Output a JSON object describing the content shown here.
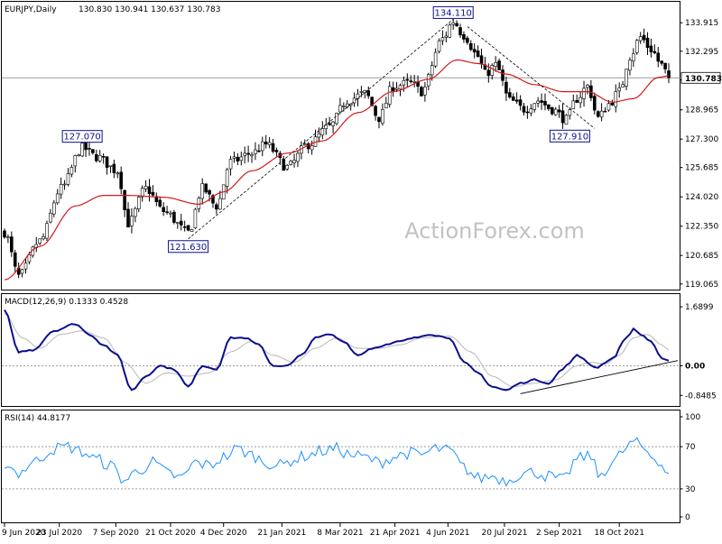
{
  "chart_data": {
    "type": "candlestick",
    "watermark": "ActionForex.com",
    "price_panel": {
      "header_symbol": "EURJPY,Daily",
      "header_ohlc": "130.830 130.941 130.637 130.783",
      "y_ticks": [
        "133.915",
        "132.295",
        "130.675",
        "128.965",
        "127.300",
        "125.685",
        "124.020",
        "122.350",
        "120.685",
        "119.065"
      ],
      "y_tick_values": [
        133.915,
        132.295,
        130.675,
        128.965,
        127.3,
        125.685,
        124.02,
        122.35,
        120.685,
        119.065
      ],
      "ylim": [
        118.9,
        134.9
      ],
      "current_price": 130.783,
      "current_price_label": "130.783",
      "callouts": [
        {
          "label": "127.070",
          "x_index": 22,
          "value": 127.07
        },
        {
          "label": "121.630",
          "x_index": 52,
          "value": 121.63
        },
        {
          "label": "134.110",
          "x_index": 127,
          "value": 134.11
        },
        {
          "label": "127.910",
          "x_index": 160,
          "value": 127.91
        }
      ],
      "trendlines": [
        {
          "from": [
            52,
            121.63
          ],
          "to": [
            127,
            134.11
          ]
        },
        {
          "from": [
            131,
            133.7
          ],
          "to": [
            167,
            127.91
          ]
        }
      ],
      "moving_average_anchors": [
        [
          0,
          119.3
        ],
        [
          10,
          121.2
        ],
        [
          20,
          123.5
        ],
        [
          28,
          124.1
        ],
        [
          35,
          124.1
        ],
        [
          45,
          124.0
        ],
        [
          55,
          123.6
        ],
        [
          62,
          124.3
        ],
        [
          70,
          125.5
        ],
        [
          80,
          126.5
        ],
        [
          90,
          127.2
        ],
        [
          100,
          128.8
        ],
        [
          110,
          130.0
        ],
        [
          120,
          130.7
        ],
        [
          128,
          131.8
        ],
        [
          134,
          131.6
        ],
        [
          142,
          131.0
        ],
        [
          150,
          130.4
        ],
        [
          158,
          130.0
        ],
        [
          165,
          130.0
        ],
        [
          172,
          129.4
        ],
        [
          178,
          129.6
        ],
        [
          185,
          130.8
        ],
        [
          188,
          130.9
        ]
      ],
      "price_anchors": [
        [
          0,
          122.0
        ],
        [
          4,
          119.5
        ],
        [
          10,
          121.5
        ],
        [
          16,
          124.5
        ],
        [
          22,
          126.8
        ],
        [
          26,
          126.3
        ],
        [
          32,
          125.5
        ],
        [
          35,
          122.5
        ],
        [
          40,
          124.5
        ],
        [
          45,
          123.2
        ],
        [
          52,
          122.0
        ],
        [
          56,
          124.5
        ],
        [
          60,
          123.5
        ],
        [
          64,
          126.0
        ],
        [
          70,
          126.5
        ],
        [
          74,
          127.0
        ],
        [
          80,
          125.7
        ],
        [
          86,
          127.0
        ],
        [
          92,
          128.0
        ],
        [
          97,
          129.5
        ],
        [
          102,
          129.9
        ],
        [
          106,
          128.5
        ],
        [
          110,
          130.3
        ],
        [
          115,
          130.5
        ],
        [
          118,
          130.0
        ],
        [
          124,
          133.0
        ],
        [
          127,
          134.0
        ],
        [
          130,
          133.2
        ],
        [
          134,
          132.0
        ],
        [
          136,
          131.0
        ],
        [
          139,
          131.5
        ],
        [
          143,
          129.5
        ],
        [
          147,
          129.0
        ],
        [
          151,
          129.5
        ],
        [
          155,
          129.0
        ],
        [
          159,
          128.4
        ],
        [
          162,
          129.6
        ],
        [
          165,
          130.3
        ],
        [
          168,
          128.5
        ],
        [
          171,
          129.3
        ],
        [
          174,
          130.0
        ],
        [
          177,
          132.0
        ],
        [
          180,
          133.1
        ],
        [
          183,
          132.4
        ],
        [
          186,
          131.5
        ],
        [
          188,
          130.78
        ]
      ]
    },
    "macd_panel": {
      "label": "MACD(12,26,9) 0.1333 0.4528",
      "y_ticks": [
        "1.6899",
        "0.00",
        "-0.8485"
      ],
      "y_tick_values": [
        1.6899,
        0.0,
        -0.8485
      ],
      "ylim": [
        -1.1,
        1.95
      ],
      "current_value_label": "0.00",
      "main_anchors": [
        [
          0,
          1.6
        ],
        [
          4,
          0.4
        ],
        [
          8,
          0.45
        ],
        [
          14,
          1.0
        ],
        [
          20,
          1.2
        ],
        [
          24,
          0.9
        ],
        [
          28,
          0.6
        ],
        [
          32,
          0.3
        ],
        [
          36,
          -0.7
        ],
        [
          40,
          -0.3
        ],
        [
          44,
          0.0
        ],
        [
          48,
          -0.1
        ],
        [
          52,
          -0.6
        ],
        [
          56,
          0.0
        ],
        [
          60,
          -0.1
        ],
        [
          64,
          0.8
        ],
        [
          68,
          0.8
        ],
        [
          72,
          0.6
        ],
        [
          76,
          0.0
        ],
        [
          80,
          0.0
        ],
        [
          84,
          0.3
        ],
        [
          88,
          0.8
        ],
        [
          92,
          0.9
        ],
        [
          96,
          0.7
        ],
        [
          100,
          0.3
        ],
        [
          104,
          0.5
        ],
        [
          108,
          0.6
        ],
        [
          112,
          0.7
        ],
        [
          116,
          0.8
        ],
        [
          120,
          0.9
        ],
        [
          126,
          0.8
        ],
        [
          130,
          0.1
        ],
        [
          134,
          -0.2
        ],
        [
          138,
          -0.6
        ],
        [
          142,
          -0.7
        ],
        [
          146,
          -0.5
        ],
        [
          150,
          -0.4
        ],
        [
          154,
          -0.5
        ],
        [
          158,
          -0.1
        ],
        [
          160,
          0.1
        ],
        [
          162,
          0.3
        ],
        [
          164,
          0.2
        ],
        [
          166,
          0.0
        ],
        [
          168,
          -0.05
        ],
        [
          170,
          0.1
        ],
        [
          172,
          0.2
        ],
        [
          176,
          0.8
        ],
        [
          178,
          1.05
        ],
        [
          180,
          0.9
        ],
        [
          183,
          0.7
        ],
        [
          186,
          0.2
        ],
        [
          188,
          0.13
        ]
      ],
      "signal_anchors": [
        [
          0,
          1.5
        ],
        [
          5,
          0.8
        ],
        [
          10,
          0.5
        ],
        [
          16,
          0.9
        ],
        [
          22,
          1.0
        ],
        [
          28,
          0.8
        ],
        [
          34,
          0.1
        ],
        [
          40,
          -0.5
        ],
        [
          46,
          -0.2
        ],
        [
          52,
          -0.3
        ],
        [
          58,
          -0.2
        ],
        [
          64,
          0.4
        ],
        [
          70,
          0.7
        ],
        [
          76,
          0.3
        ],
        [
          82,
          0.1
        ],
        [
          88,
          0.5
        ],
        [
          94,
          0.8
        ],
        [
          100,
          0.5
        ],
        [
          106,
          0.5
        ],
        [
          112,
          0.6
        ],
        [
          118,
          0.8
        ],
        [
          126,
          0.85
        ],
        [
          132,
          0.4
        ],
        [
          138,
          -0.3
        ],
        [
          144,
          -0.6
        ],
        [
          150,
          -0.5
        ],
        [
          156,
          -0.4
        ],
        [
          162,
          0.0
        ],
        [
          166,
          0.1
        ],
        [
          170,
          0.05
        ],
        [
          174,
          0.3
        ],
        [
          178,
          0.8
        ],
        [
          182,
          0.9
        ],
        [
          186,
          0.6
        ],
        [
          188,
          0.45
        ]
      ],
      "trendline": {
        "from": [
          146,
          -0.8
        ],
        "to": [
          188,
          0.15
        ]
      }
    },
    "rsi_panel": {
      "label": "RSI(14) 44.8177",
      "y_ticks": [
        "100",
        "70",
        "30",
        "0"
      ],
      "y_tick_values": [
        100,
        70,
        30,
        0
      ],
      "ylim": [
        0,
        100
      ],
      "levels": [
        70,
        30
      ],
      "anchors": [
        [
          0,
          55
        ],
        [
          4,
          45
        ],
        [
          8,
          55
        ],
        [
          14,
          68
        ],
        [
          18,
          70
        ],
        [
          22,
          65
        ],
        [
          26,
          58
        ],
        [
          30,
          52
        ],
        [
          34,
          38
        ],
        [
          38,
          48
        ],
        [
          42,
          55
        ],
        [
          46,
          45
        ],
        [
          50,
          40
        ],
        [
          54,
          55
        ],
        [
          58,
          52
        ],
        [
          62,
          60
        ],
        [
          66,
          68
        ],
        [
          70,
          62
        ],
        [
          74,
          55
        ],
        [
          78,
          52
        ],
        [
          82,
          58
        ],
        [
          86,
          62
        ],
        [
          90,
          66
        ],
        [
          94,
          68
        ],
        [
          98,
          62
        ],
        [
          102,
          60
        ],
        [
          106,
          55
        ],
        [
          110,
          60
        ],
        [
          114,
          64
        ],
        [
          118,
          62
        ],
        [
          122,
          68
        ],
        [
          126,
          66
        ],
        [
          130,
          50
        ],
        [
          134,
          40
        ],
        [
          138,
          42
        ],
        [
          142,
          38
        ],
        [
          146,
          44
        ],
        [
          150,
          46
        ],
        [
          154,
          42
        ],
        [
          158,
          38
        ],
        [
          162,
          58
        ],
        [
          166,
          62
        ],
        [
          168,
          42
        ],
        [
          170,
          48
        ],
        [
          172,
          55
        ],
        [
          176,
          68
        ],
        [
          178,
          75
        ],
        [
          180,
          70
        ],
        [
          184,
          60
        ],
        [
          188,
          45
        ]
      ]
    },
    "x_axis": {
      "tick_labels": [
        "9 Jun 2020",
        "23 Jul 2020",
        "7 Sep 2020",
        "21 Oct 2020",
        "4 Dec 2020",
        "21 Jan 2021",
        "8 Mar 2021",
        "21 Apr 2021",
        "4 Jun 2021",
        "20 Jul 2021",
        "2 Sep 2021",
        "18 Oct 2021"
      ],
      "tick_indices": [
        0,
        15.5,
        31.5,
        47,
        62,
        78.5,
        95,
        110.5,
        125.5,
        141.5,
        157,
        174
      ],
      "bar_count": 189
    },
    "colors": {
      "bull": "#000000",
      "bear": "#000000",
      "moving_average": "#d21a1a",
      "macd_main": "#0b0f8c",
      "macd_signal": "#b8b8b8",
      "rsi": "#1e90ff",
      "callout_text": "#0b0f8c",
      "watermark": "#c2c2c2",
      "background": "#ffffff"
    }
  }
}
